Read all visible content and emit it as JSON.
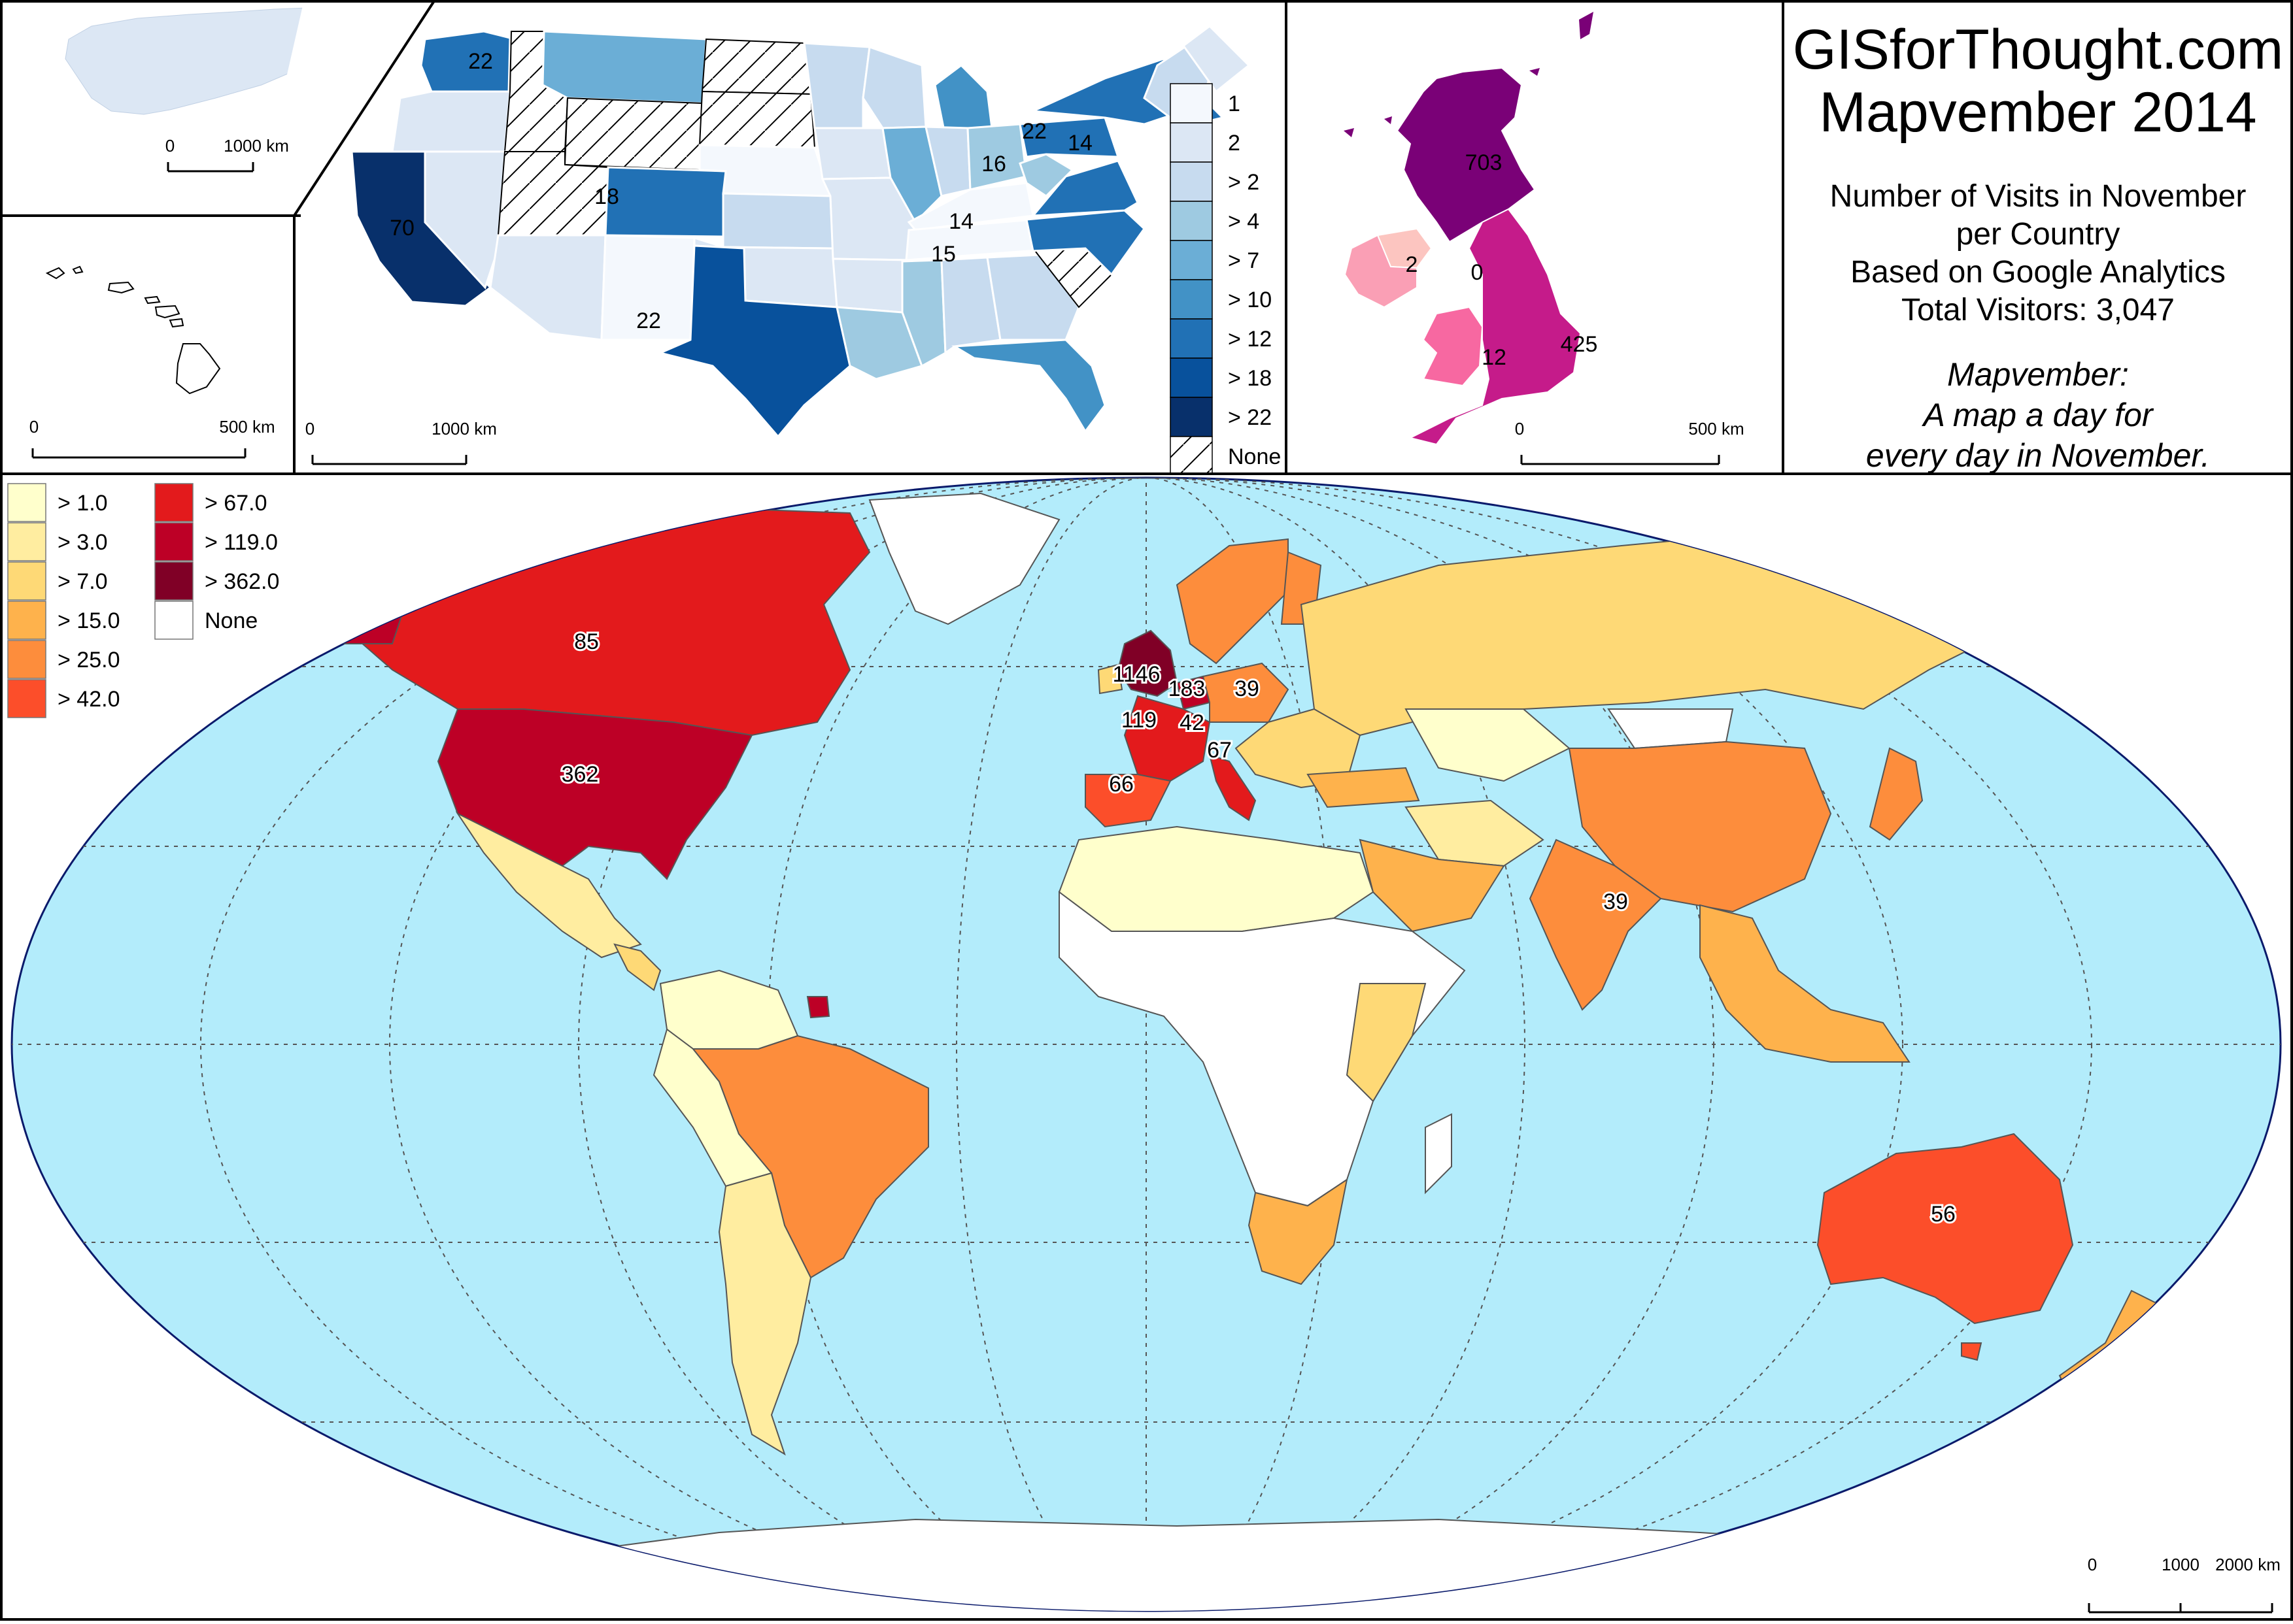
{
  "header": {
    "site_title": "GISforThought.com",
    "map_title": "Mapvember 2014",
    "subtitle_lines": [
      "Number of Visits in November",
      "per Country",
      "Based on Google Analytics",
      "Total Visitors: 3,047"
    ],
    "tagline_lines": [
      "Mapvember:",
      "A map a day for",
      "every day in November."
    ]
  },
  "alaska_inset": {
    "scale": {
      "zero": "0",
      "label": "1000 km"
    }
  },
  "hawaii_inset": {
    "scale": {
      "zero": "0",
      "label": "500 km"
    }
  },
  "usa_map": {
    "scale": {
      "zero": "0",
      "label": "1000 km"
    },
    "labels": [
      {
        "value": "22",
        "place": "Washington"
      },
      {
        "value": "70",
        "place": "California"
      },
      {
        "value": "18",
        "place": "Colorado"
      },
      {
        "value": "22",
        "place": "Texas"
      },
      {
        "value": "16",
        "place": "Pennsylvania"
      },
      {
        "value": "22",
        "place": "New York"
      },
      {
        "value": "14",
        "place": "Massachusetts"
      },
      {
        "value": "14",
        "place": "Virginia"
      },
      {
        "value": "15",
        "place": "North Carolina"
      }
    ],
    "legend": [
      {
        "label": "1",
        "color": "#f4f8fd"
      },
      {
        "label": "2",
        "color": "#dce7f4"
      },
      {
        "label": "> 2",
        "color": "#c7dbef"
      },
      {
        "label": "> 4",
        "color": "#9ecae1"
      },
      {
        "label": "> 7",
        "color": "#6baed6"
      },
      {
        "label": "> 10",
        "color": "#4292c6"
      },
      {
        "label": "> 12",
        "color": "#2171b5"
      },
      {
        "label": "> 18",
        "color": "#08519c"
      },
      {
        "label": "> 22",
        "color": "#08306b"
      },
      {
        "label": "None",
        "color": "hatch"
      }
    ]
  },
  "uk_map": {
    "scale": {
      "zero": "0",
      "label": "500 km"
    },
    "labels": [
      {
        "value": "703",
        "place": "Scotland"
      },
      {
        "value": "2",
        "place": "Ireland"
      },
      {
        "value": "0",
        "place": "Northern Ireland"
      },
      {
        "value": "12",
        "place": "Wales"
      },
      {
        "value": "425",
        "place": "England"
      }
    ]
  },
  "world_map": {
    "scale": {
      "zero": "0",
      "mid": "1000",
      "label": "2000 km"
    },
    "legend": [
      {
        "label": "> 1.0",
        "color": "#ffffcc"
      },
      {
        "label": "> 3.0",
        "color": "#ffeda0"
      },
      {
        "label": "> 7.0",
        "color": "#fed976"
      },
      {
        "label": "> 15.0",
        "color": "#feb24c"
      },
      {
        "label": "> 25.0",
        "color": "#fd8d3c"
      },
      {
        "label": "> 42.0",
        "color": "#fc4e2a"
      },
      {
        "label": "> 67.0",
        "color": "#e31a1c"
      },
      {
        "label": "> 119.0",
        "color": "#bd0026"
      },
      {
        "label": "> 362.0",
        "color": "#800026"
      },
      {
        "label": "None",
        "color": "#ffffff"
      }
    ],
    "labels": [
      {
        "value": "85",
        "place": "Canada"
      },
      {
        "value": "362",
        "place": "United States"
      },
      {
        "value": "1146",
        "place": "United Kingdom"
      },
      {
        "value": "183",
        "place": "Netherlands"
      },
      {
        "value": "39",
        "place": "Poland"
      },
      {
        "value": "119",
        "place": "France"
      },
      {
        "value": "42",
        "place": "Switzerland"
      },
      {
        "value": "67",
        "place": "Italy"
      },
      {
        "value": "66",
        "place": "Spain"
      },
      {
        "value": "39",
        "place": "India"
      },
      {
        "value": "56",
        "place": "Australia"
      }
    ]
  },
  "colors": {
    "ocean": "#b3ecfb",
    "graticule": "#555555",
    "border": "#000000"
  }
}
